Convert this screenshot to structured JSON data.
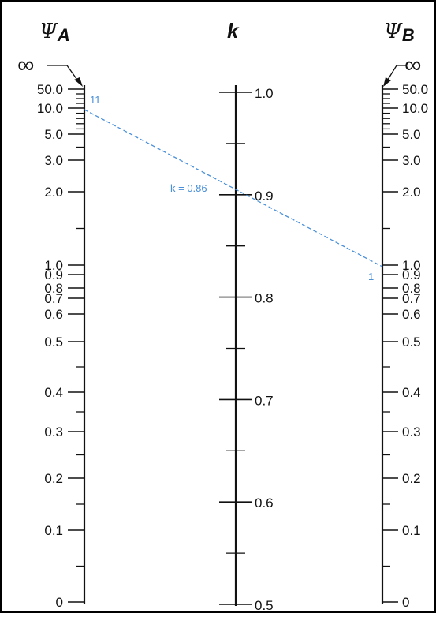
{
  "headers": {
    "psi_a_symbol": "Ψ",
    "psi_a_sub": "A",
    "k": "k",
    "psi_b_symbol": "Ψ",
    "psi_b_sub": "B"
  },
  "psi_scale": {
    "infinity": "∞",
    "ticks": [
      {
        "value": 50.0,
        "label": "50.0",
        "major": true
      },
      {
        "value": 10.0,
        "label": "10.0",
        "major": true
      },
      {
        "value": 5.0,
        "label": "5.0",
        "major": true
      },
      {
        "value": 3.0,
        "label": "3.0",
        "major": true
      },
      {
        "value": 2.0,
        "label": "2.0",
        "major": true
      },
      {
        "value": 1.0,
        "label": "1.0",
        "major": true
      },
      {
        "value": 0.9,
        "label": "0.9",
        "major": true
      },
      {
        "value": 0.8,
        "label": "0.8",
        "major": true
      },
      {
        "value": 0.7,
        "label": "0.7",
        "major": true
      },
      {
        "value": 0.6,
        "label": "0.6",
        "major": true
      },
      {
        "value": 0.5,
        "label": "0.5",
        "major": true
      },
      {
        "value": 0.4,
        "label": "0.4",
        "major": true
      },
      {
        "value": 0.3,
        "label": "0.3",
        "major": true
      },
      {
        "value": 0.2,
        "label": "0.2",
        "major": true
      },
      {
        "value": 0.1,
        "label": "0.1",
        "major": true
      },
      {
        "value": 0,
        "label": "0",
        "major": true
      }
    ]
  },
  "k_scale": {
    "ticks": [
      {
        "value": 1.0,
        "label": "1.0",
        "major": true
      },
      {
        "value": 0.9,
        "label": "0.9",
        "major": true
      },
      {
        "value": 0.8,
        "label": "0.8",
        "major": true
      },
      {
        "value": 0.7,
        "label": "0.7",
        "major": true
      },
      {
        "value": 0.6,
        "label": "0.6",
        "major": true
      },
      {
        "value": 0.5,
        "label": "0.5",
        "major": true
      }
    ]
  },
  "annotations": {
    "psi_a_value_label": "11",
    "k_value_label": "k = 0.86",
    "psi_b_value_label": "1",
    "line_color": "#4a90d9"
  },
  "colors": {
    "ink": "#111111",
    "border": "#000000",
    "annotation": "#4a90d9"
  }
}
